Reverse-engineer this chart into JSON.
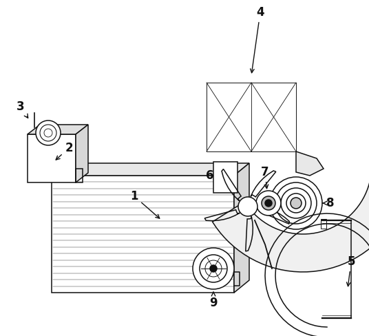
{
  "background_color": "#ffffff",
  "line_color": "#111111",
  "label_color": "#000000",
  "lw": 1.1,
  "fig_w": 5.36,
  "fig_h": 4.88,
  "dpi": 100
}
